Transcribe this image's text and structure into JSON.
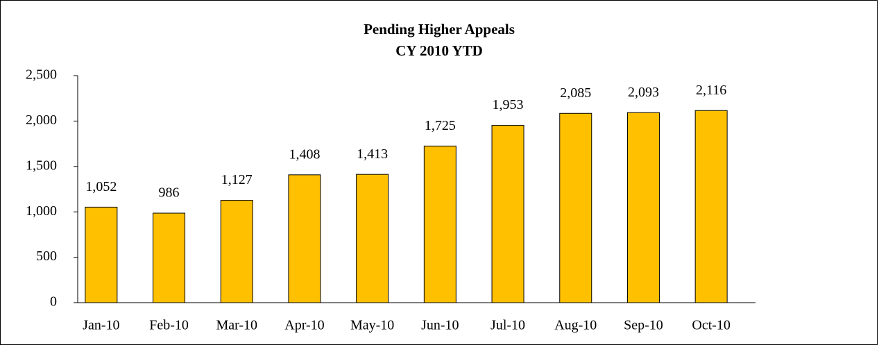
{
  "chart_data": {
    "type": "bar",
    "title": "Pending Higher Appeals",
    "subtitle": "CY 2010 YTD",
    "categories": [
      "Jan-10",
      "Feb-10",
      "Mar-10",
      "Apr-10",
      "May-10",
      "Jun-10",
      "Jul-10",
      "Aug-10",
      "Sep-10",
      "Oct-10"
    ],
    "values": [
      1052,
      986,
      1127,
      1408,
      1413,
      1725,
      1953,
      2085,
      2093,
      2116
    ],
    "value_labels": [
      "1,052",
      "986",
      "1,127",
      "1,408",
      "1,413",
      "1,725",
      "1,953",
      "2,085",
      "2,093",
      "2,116"
    ],
    "color": "#ffc000",
    "ylim": [
      0,
      2500
    ],
    "yticks": [
      0,
      500,
      {
        "value": 1000,
        "label": "1,000"
      },
      {
        "value": 1500,
        "label": "1,500"
      },
      {
        "value": 2000,
        "label": "2,000"
      },
      {
        "value": 2500,
        "label": "2,500"
      }
    ],
    "grid": false
  }
}
